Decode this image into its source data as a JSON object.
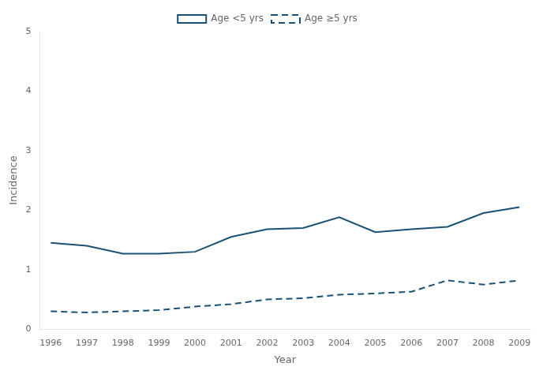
{
  "chart_data": {
    "type": "line",
    "x": [
      1996,
      1997,
      1998,
      1999,
      2000,
      2001,
      2002,
      2003,
      2004,
      2005,
      2006,
      2007,
      2008,
      2009
    ],
    "series": [
      {
        "name": "Age <5 yrs",
        "color": "#1a5276",
        "line_style": "solid",
        "values": [
          1.45,
          1.4,
          1.27,
          1.27,
          1.3,
          1.55,
          1.68,
          1.7,
          1.88,
          1.63,
          1.68,
          1.72,
          1.95,
          2.05
        ]
      },
      {
        "name": "Age ≥5 yrs",
        "color": "#1a5276",
        "line_style": "dashed",
        "values": [
          0.3,
          0.28,
          0.3,
          0.32,
          0.38,
          0.42,
          0.5,
          0.52,
          0.58,
          0.6,
          0.63,
          0.82,
          0.75,
          0.82
        ]
      }
    ],
    "x_label": "Year",
    "y_label": "Incidence",
    "xlim": [
      1995.7,
      2009.3
    ],
    "xticks": [
      1996,
      1997,
      1998,
      1999,
      2000,
      2001,
      2002,
      2003,
      2004,
      2005,
      2006,
      2007,
      2008,
      2009
    ],
    "ylim": [
      0,
      5
    ],
    "yticks": [
      0,
      1,
      2,
      3,
      4,
      5
    ],
    "grid": false,
    "legend": "top"
  }
}
